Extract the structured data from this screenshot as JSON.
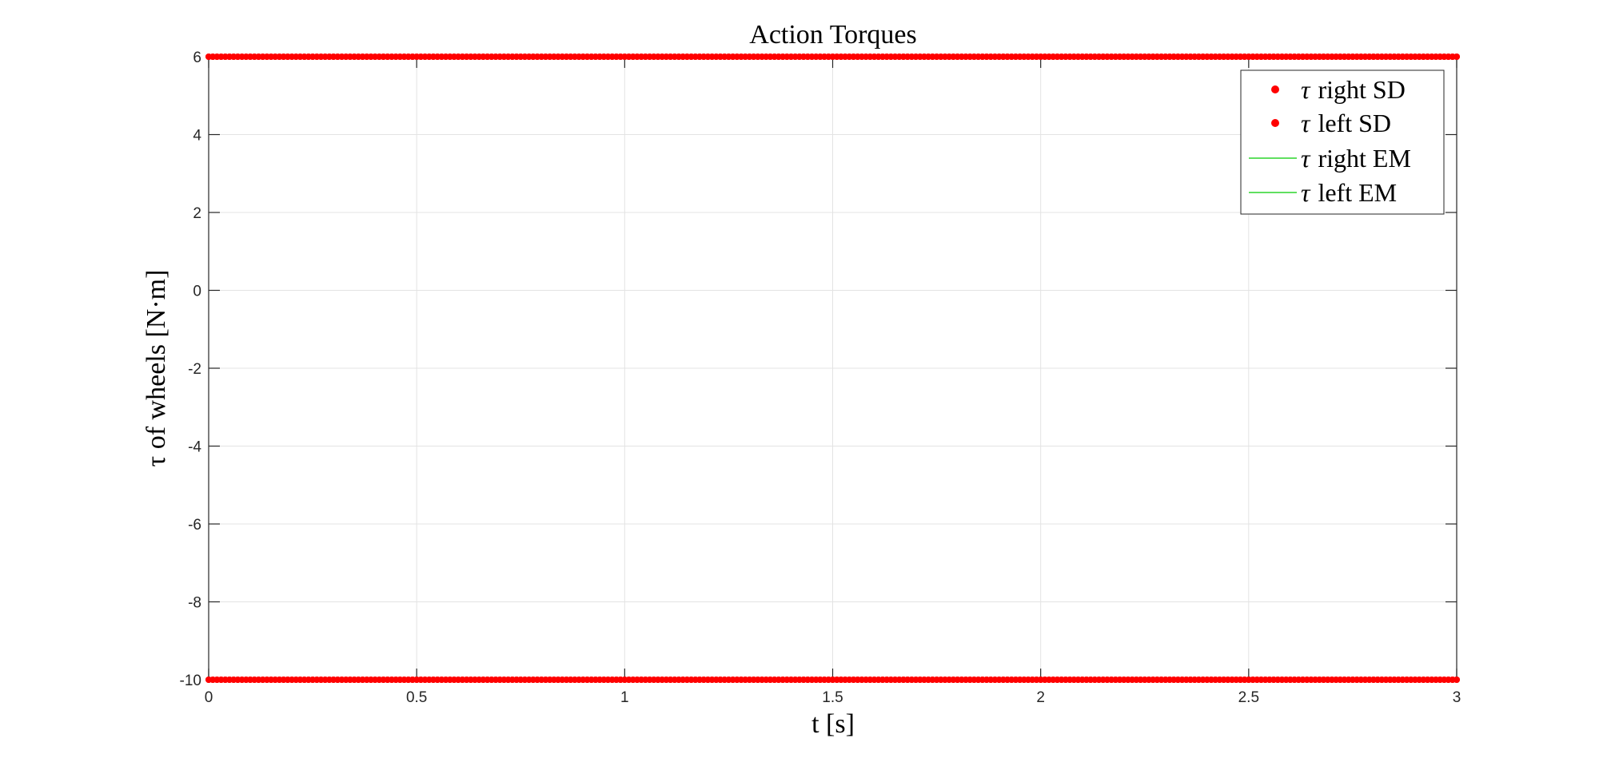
{
  "chart_data": {
    "type": "scatter",
    "title": "Action Torques",
    "xlabel": "t [s]",
    "ylabel": "τ of wheels [N·m]",
    "xlim": [
      0,
      3
    ],
    "ylim": [
      -10,
      6
    ],
    "xticks": [
      0,
      0.5,
      1,
      1.5,
      2,
      2.5,
      3
    ],
    "xtick_labels": [
      "0",
      "0.5",
      "1",
      "1.5",
      "2",
      "2.5",
      "3"
    ],
    "yticks": [
      -10,
      -8,
      -6,
      -4,
      -2,
      0,
      2,
      4,
      6
    ],
    "ytick_labels": [
      "-10",
      "-8",
      "-6",
      "-4",
      "-2",
      "0",
      "2",
      "4",
      "6"
    ],
    "grid": true,
    "legend_position": "top-right",
    "series": [
      {
        "name": "τ right SD",
        "symbol": "τ",
        "label": "right SD",
        "kind": "points",
        "color": "#ff0000",
        "segments": [
          {
            "value": 6,
            "x_start": 0,
            "x_end": 3,
            "x_step": 0.01
          },
          {
            "value": -10,
            "x_start": 0,
            "x_end": 3,
            "x_step": 0.01
          }
        ]
      },
      {
        "name": "τ left SD",
        "symbol": "τ",
        "label": "left SD",
        "kind": "points",
        "color": "#ff0000",
        "segments": [
          {
            "value": 6,
            "x_start": 0,
            "x_end": 3,
            "x_step": 0.01
          },
          {
            "value": -10,
            "x_start": 0,
            "x_end": 3,
            "x_step": 0.01
          }
        ]
      },
      {
        "name": "τ right EM",
        "symbol": "τ",
        "label": "right EM",
        "kind": "line",
        "color": "#00cc00",
        "x": [],
        "y": []
      },
      {
        "name": "τ left EM",
        "symbol": "τ",
        "label": "left EM",
        "kind": "line",
        "color": "#00cc00",
        "x": [],
        "y": []
      }
    ]
  }
}
